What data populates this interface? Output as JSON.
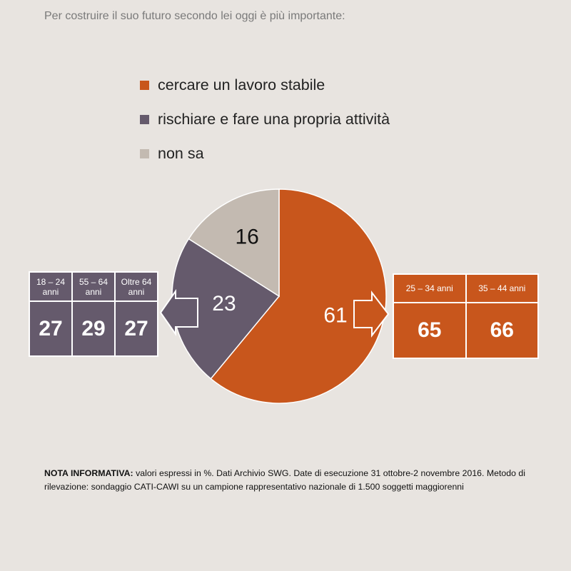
{
  "title": "Per costruire il suo futuro secondo lei oggi è più importante:",
  "colors": {
    "stabile": "#c8561c",
    "rischiare": "#655a6c",
    "non_sa": "#c3bab1",
    "background": "#e8e4e0"
  },
  "legend": [
    {
      "label": "cercare un lavoro stabile",
      "color": "#c8561c"
    },
    {
      "label": "rischiare e fare una propria attività",
      "color": "#655a6c"
    },
    {
      "label": "non sa",
      "color": "#c3bab1"
    }
  ],
  "chart_data": {
    "type": "pie",
    "slices": [
      {
        "name": "cercare un lavoro stabile",
        "value": 61,
        "color": "#c8561c"
      },
      {
        "name": "rischiare e fare una propria attività",
        "value": 23,
        "color": "#655a6c"
      },
      {
        "name": "non sa",
        "value": 16,
        "color": "#c3bab1"
      }
    ],
    "legend_position": "top"
  },
  "age_left": {
    "headers": [
      "18 – 24 anni",
      "55 – 64 anni",
      "Oltre 64 anni"
    ],
    "values": [
      "27",
      "29",
      "27"
    ]
  },
  "age_right": {
    "headers": [
      "25 – 34 anni",
      "35 – 44 anni"
    ],
    "values": [
      "65",
      "66"
    ]
  },
  "note": {
    "bold": "NOTA INFORMATIVA:",
    "text": " valori espressi in %. Dati Archivio SWG. Date di esecuzione 31 ottobre-2 novembre 2016. Metodo di rilevazione: sondaggio CATI-CAWI su un campione rappresentativo nazionale di 1.500 soggetti maggiorenni"
  }
}
